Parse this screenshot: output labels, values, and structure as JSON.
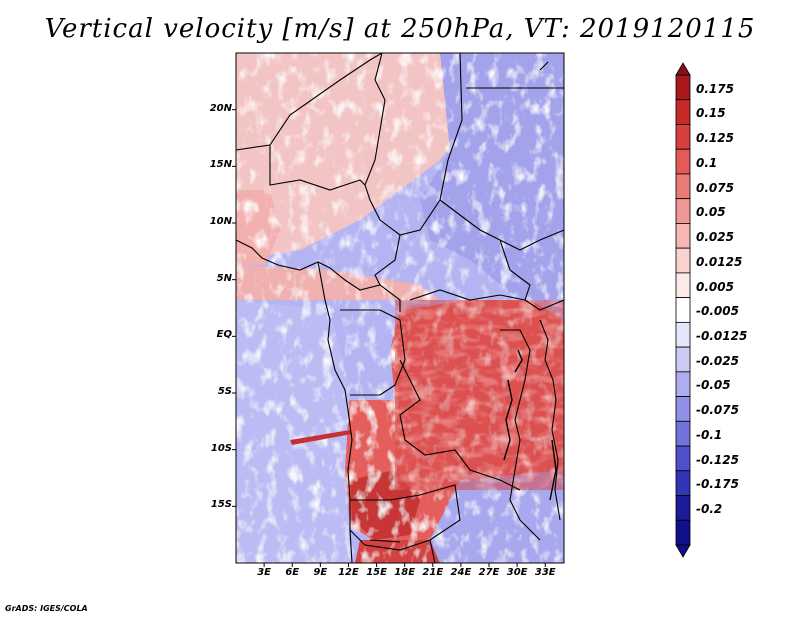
{
  "title": "Vertical velocity [m/s] at 250hPa, VT: 2019120115",
  "credit": "GrADS: IGES/COLA",
  "map": {
    "lat_labels": [
      "20N",
      "15N",
      "10N",
      "5N",
      "EQ",
      "5S",
      "10S",
      "15S"
    ],
    "lat_values": [
      20,
      15,
      10,
      5,
      0,
      -5,
      -10,
      -15
    ],
    "lon_labels": [
      "3E",
      "6E",
      "9E",
      "12E",
      "15E",
      "18E",
      "21E",
      "24E",
      "27E",
      "30E",
      "33E"
    ],
    "lon_values": [
      3,
      6,
      9,
      12,
      15,
      18,
      21,
      24,
      27,
      30,
      33
    ],
    "lat_range": [
      -20,
      25
    ],
    "lon_range": [
      0,
      35
    ]
  },
  "colorbar": {
    "labels": [
      "0.175",
      "0.15",
      "0.125",
      "0.1",
      "0.075",
      "0.05",
      "0.025",
      "0.0125",
      "0.005",
      "-0.005",
      "-0.0125",
      "-0.025",
      "-0.05",
      "-0.075",
      "-0.1",
      "-0.125",
      "-0.175",
      "-0.2"
    ],
    "colors": [
      "#a8181c",
      "#c82a2a",
      "#d84040",
      "#e35a58",
      "#ea7a76",
      "#f09896",
      "#f5b6b4",
      "#fad2d0",
      "#fdebea",
      "#ffffff",
      "#e6e6fb",
      "#cacaf5",
      "#aeaeee",
      "#9090e6",
      "#7272dc",
      "#5050cc",
      "#3434b8",
      "#1c1c9a",
      "#10108a"
    ]
  }
}
